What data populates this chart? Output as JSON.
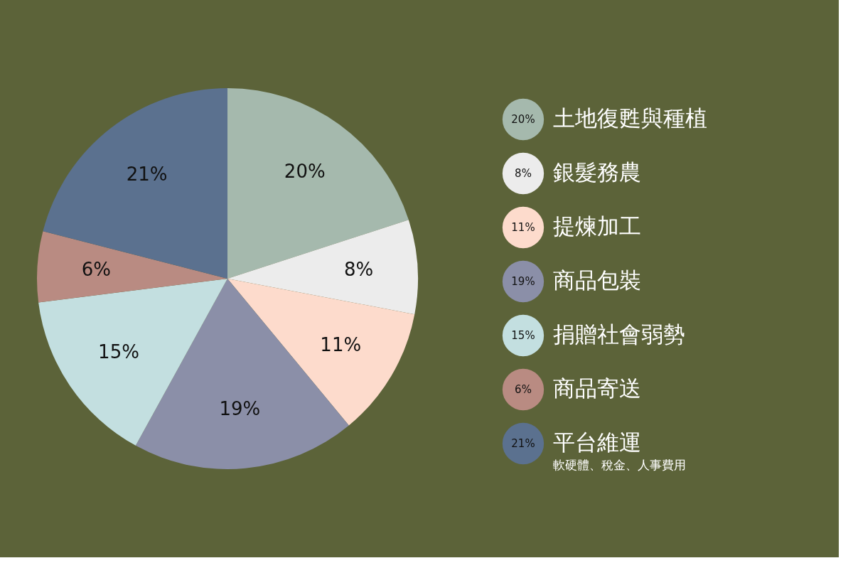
{
  "chart_data": {
    "type": "pie",
    "categories": [
      "土地復甦與種植",
      "銀髮務農",
      "提煉加工",
      "商品包裝",
      "捐贈社會弱勢",
      "商品寄送",
      "平台維運"
    ],
    "values": [
      20,
      8,
      11,
      19,
      15,
      6,
      21
    ],
    "value_labels": [
      "20%",
      "8%",
      "11%",
      "19%",
      "15%",
      "6%",
      "21%"
    ],
    "colors": [
      "#a5b9ad",
      "#ececec",
      "#fddbcc",
      "#8b8fa8",
      "#c3dfe0",
      "#b98b82",
      "#5b718f"
    ],
    "legend": "right",
    "annotations": [
      "軟硬體、稅金、人事費用"
    ]
  }
}
